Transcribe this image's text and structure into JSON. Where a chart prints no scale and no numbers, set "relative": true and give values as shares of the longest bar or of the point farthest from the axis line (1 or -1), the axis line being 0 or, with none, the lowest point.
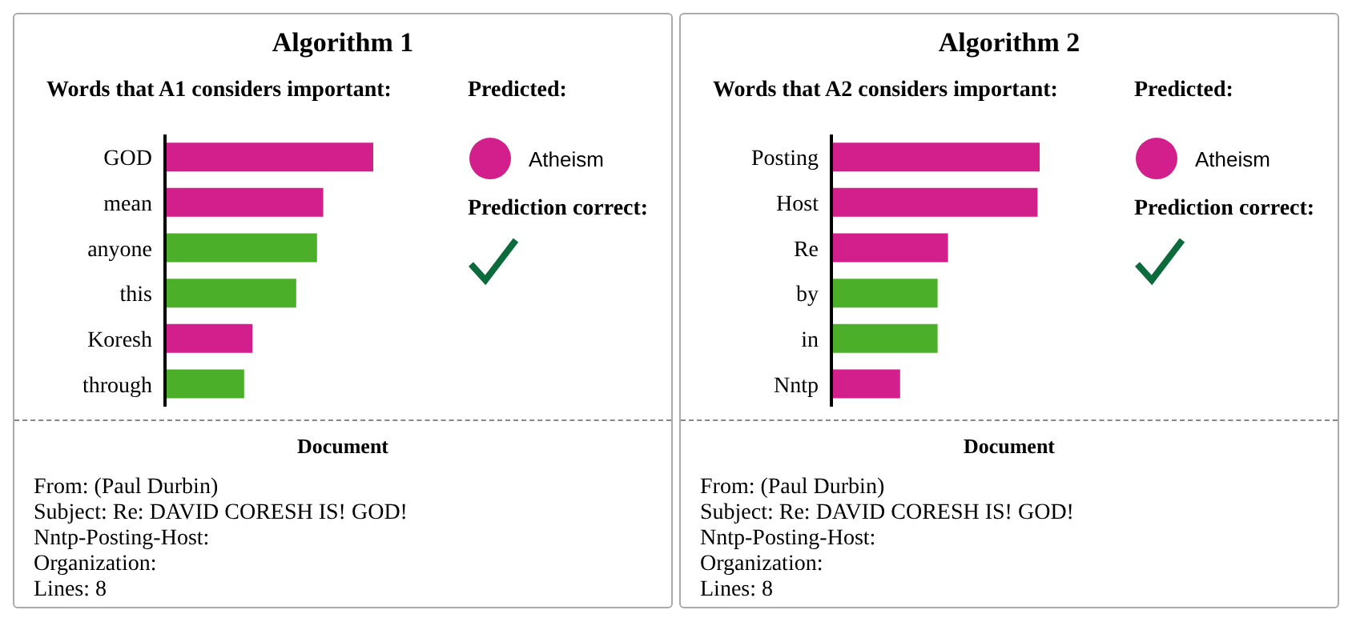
{
  "chart_data": [
    {
      "type": "bar",
      "orientation": "horizontal",
      "relative": true,
      "title": "Algorithm 1",
      "subtitle": "Words that A1 considers important:",
      "categories": [
        "GOD",
        "mean",
        "anyone",
        "this",
        "Koresh",
        "through"
      ],
      "values": [
        1,
        0.76,
        0.73,
        0.63,
        0.42,
        0.38
      ],
      "colors": [
        "#d21f8c",
        "#d21f8c",
        "#4caf2a",
        "#4caf2a",
        "#d21f8c",
        "#4caf2a"
      ],
      "annotations": [
        "Predicted:",
        "Atheism",
        "Prediction correct:",
        "Document",
        "From: (Paul Durbin)",
        "Subject: Re: DAVID CORESH IS! GOD!",
        "Nntp-Posting-Host:",
        "Organization:",
        "Lines: 8"
      ]
    },
    {
      "type": "bar",
      "orientation": "horizontal",
      "relative": true,
      "title": "Algorithm 2",
      "subtitle": "Words that A2 considers important:",
      "categories": [
        "Posting",
        "Host",
        "Re",
        "by",
        "in",
        "Nntp"
      ],
      "values": [
        1,
        0.99,
        0.56,
        0.51,
        0.51,
        0.33
      ],
      "colors": [
        "#d21f8c",
        "#d21f8c",
        "#d21f8c",
        "#4caf2a",
        "#4caf2a",
        "#d21f8c"
      ],
      "annotations": [
        "Predicted:",
        "Atheism",
        "Prediction correct:",
        "Document",
        "From: (Paul Durbin)",
        "Subject: Re: DAVID CORESH IS! GOD!",
        "Nntp-Posting-Host:",
        "Organization:",
        "Lines: 8"
      ]
    }
  ]
}
